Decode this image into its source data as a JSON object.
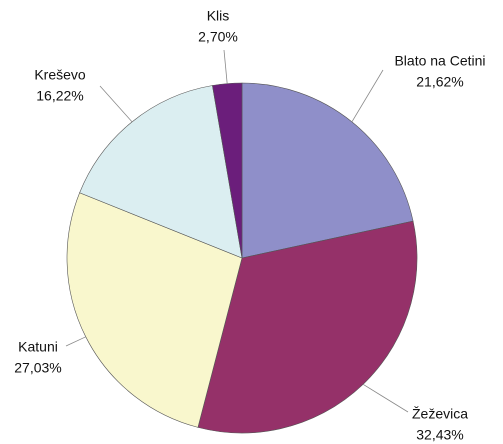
{
  "chart_data": {
    "type": "pie",
    "categories": [
      "Blato na Cetini",
      "Žeževica",
      "Katuni",
      "Kreševo",
      "Klis"
    ],
    "values": [
      21.62,
      32.43,
      27.03,
      16.22,
      2.7
    ],
    "value_labels": [
      "21,62%",
      "32,43%",
      "27,03%",
      "16,22%",
      "2,70%"
    ],
    "colors": [
      "#8f8fc9",
      "#953169",
      "#f9f7cd",
      "#dbeef1",
      "#6b1e7b"
    ]
  }
}
